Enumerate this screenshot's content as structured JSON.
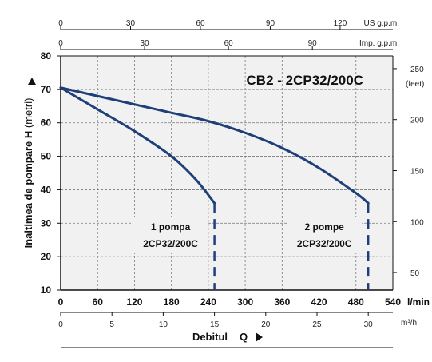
{
  "chart_data": {
    "type": "line",
    "title": "CB2 - 2CP32/200C",
    "ylabel": "Inaltimea de pompare",
    "ylabel_symbol": "H",
    "ylabel_unit": "(metri)",
    "xlabel": "Debitul",
    "xlabel_symbol": "Q",
    "ylim": [
      10,
      80
    ],
    "xlim": [
      0,
      540
    ],
    "y_ticks": [
      10,
      20,
      30,
      40,
      50,
      60,
      70,
      80
    ],
    "x_ticks_lmin": [
      0,
      60,
      120,
      180,
      240,
      300,
      360,
      420,
      480,
      540
    ],
    "x_unit_lmin": "l/min",
    "x_ticks_m3h": [
      0,
      5,
      10,
      15,
      20,
      25,
      30
    ],
    "x_unit_m3h": "m³/h",
    "x_ticks_usgpm": [
      0,
      30,
      60,
      90,
      120
    ],
    "x_unit_usgpm": "US g.p.m.",
    "x_ticks_impgpm": [
      0,
      30,
      60,
      90
    ],
    "x_unit_impgpm": "Imp. g.p.m.",
    "y_ticks_feet": [
      50,
      100,
      150,
      200,
      250
    ],
    "y_unit_feet": "(feet)",
    "grid": true,
    "series": [
      {
        "name": "1 pompa",
        "sublabel": "2CP32/200C",
        "color": "#1f3f7a",
        "x": [
          0,
          60,
          120,
          180,
          220,
          250
        ],
        "y": [
          70.5,
          64,
          57.5,
          50,
          43,
          36
        ],
        "drop_x": 250
      },
      {
        "name": "2 pompe",
        "sublabel": "2CP32/200C",
        "color": "#1f3f7a",
        "x": [
          0,
          60,
          120,
          180,
          240,
          300,
          360,
          420,
          480,
          500
        ],
        "y": [
          70.5,
          68,
          65.5,
          63,
          60.5,
          57,
          52.5,
          46.5,
          39,
          36
        ],
        "drop_x": 500
      }
    ]
  }
}
